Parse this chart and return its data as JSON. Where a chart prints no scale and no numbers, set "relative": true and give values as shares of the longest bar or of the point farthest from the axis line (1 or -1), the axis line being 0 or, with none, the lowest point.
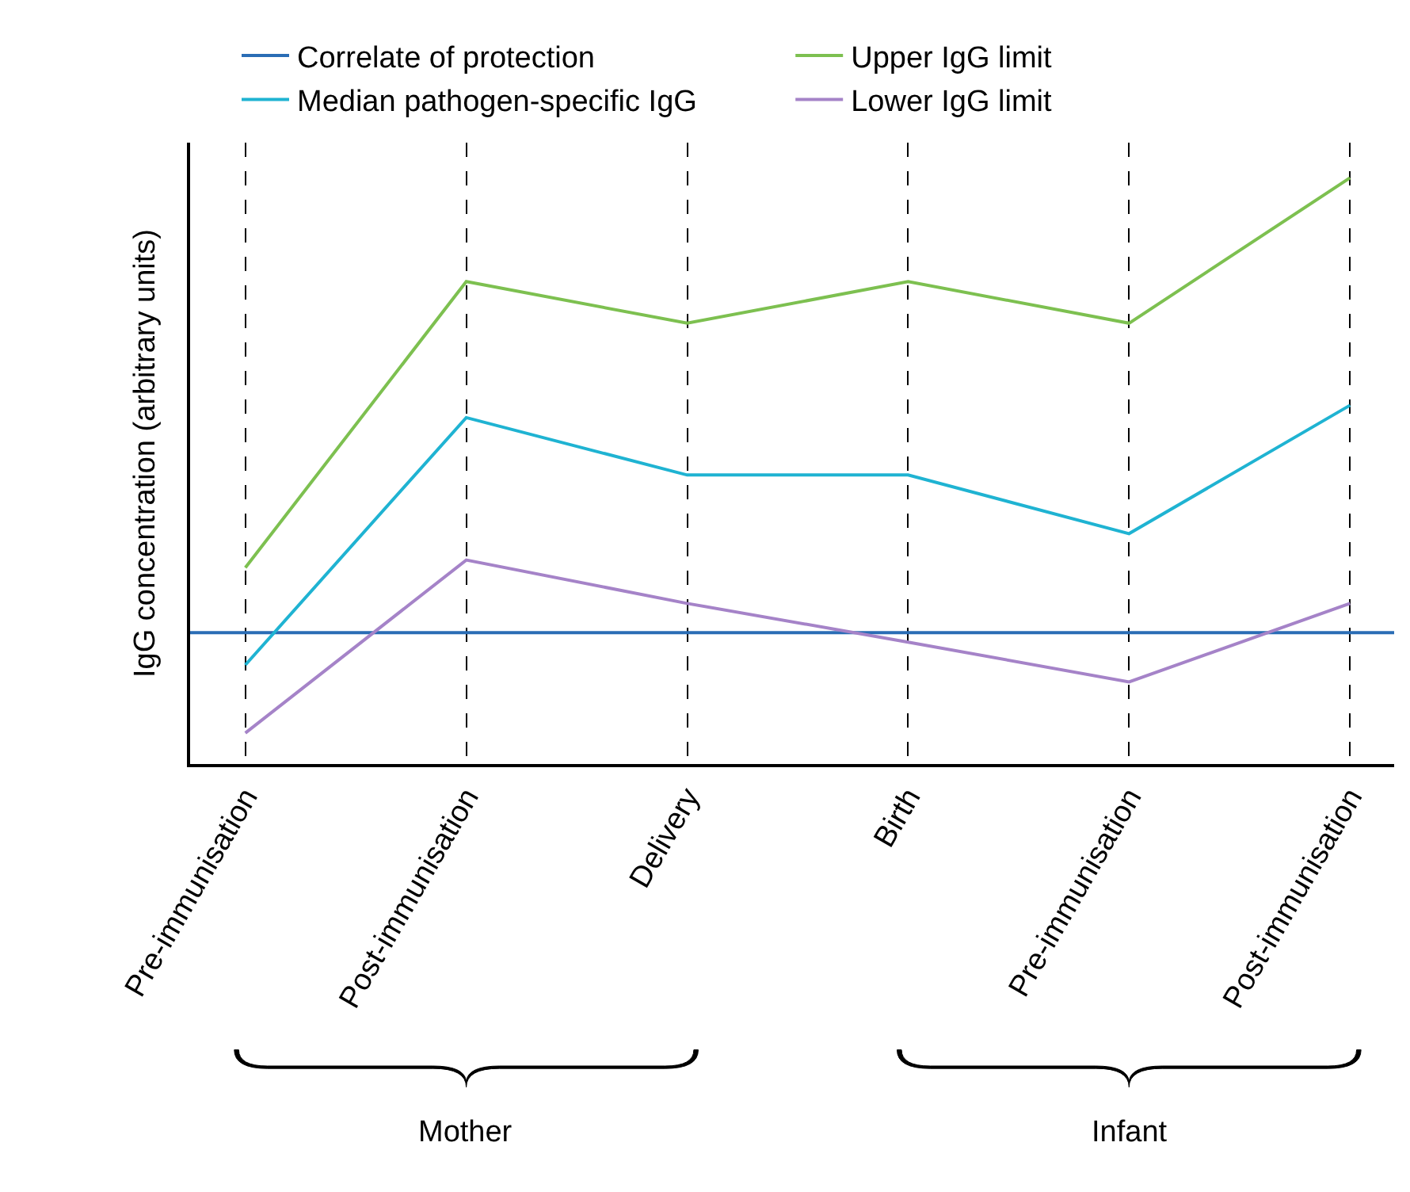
{
  "chart_data": {
    "type": "line",
    "relative": true,
    "ylabel": "IgG concentration (arbitrary units)",
    "categories": [
      "Pre-immunisation",
      "Post-immunisation",
      "Delivery",
      "Birth",
      "Pre-immunisation",
      "Post-immunisation"
    ],
    "series": [
      {
        "name": "Median pathogen-specific IgG",
        "color": "#1fb3d2",
        "values": [
          0.169,
          0.591,
          0.493,
          0.493,
          0.393,
          0.612
        ]
      },
      {
        "name": "Upper IgG limit",
        "color": "#7dc050",
        "values": [
          0.335,
          0.823,
          0.752,
          0.823,
          0.752,
          1
        ]
      },
      {
        "name": "Lower IgG limit",
        "color": "#a583c8",
        "values": [
          0.053,
          0.348,
          0.274,
          0.208,
          0.14,
          0.274
        ]
      }
    ],
    "ref_lines": [
      {
        "axis": "y",
        "value": 0.224,
        "label": "Correlate of protection",
        "color": "#2a6db5",
        "line_style": "solid"
      }
    ],
    "annotations": [
      "Mother",
      "Infant"
    ],
    "grid": "x",
    "legend": "top",
    "marker": "none",
    "line_style": "solid"
  }
}
